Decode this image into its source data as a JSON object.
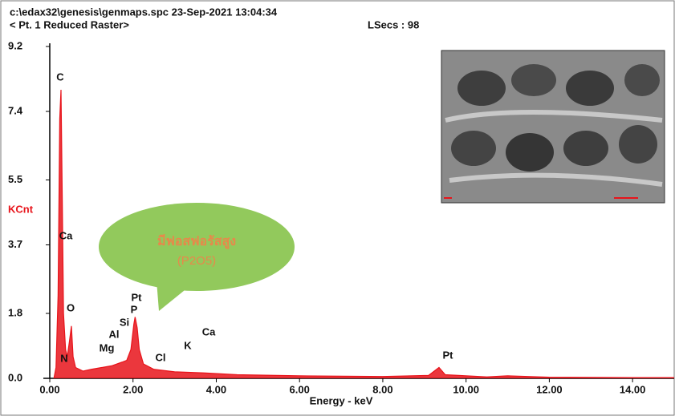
{
  "header": {
    "file": "c:\\edax32\\genesis\\genmaps.spc  23-Sep-2021 13:04:34",
    "raster": "< Pt.  1 Reduced Raster>",
    "lsecs": "LSecs :  98"
  },
  "chart_data": {
    "type": "area",
    "color": "#e8141b",
    "x_label": "Energy - keV",
    "y_label": "KCnt",
    "x": [
      0.1,
      0.15,
      0.2,
      0.24,
      0.27,
      0.3,
      0.33,
      0.38,
      0.42,
      0.47,
      0.52,
      0.56,
      0.62,
      0.8,
      1.0,
      1.25,
      1.5,
      1.74,
      1.85,
      1.95,
      2.02,
      2.05,
      2.1,
      2.15,
      2.25,
      2.5,
      3.0,
      3.7,
      4.5,
      6.0,
      8.0,
      9.1,
      9.35,
      9.5,
      10.5,
      11.0,
      12.0,
      14.0,
      15.0
    ],
    "values": [
      0,
      0.3,
      2.3,
      7.2,
      8.0,
      5.0,
      1.8,
      0.8,
      0.6,
      1.0,
      1.45,
      0.6,
      0.3,
      0.2,
      0.25,
      0.3,
      0.35,
      0.45,
      0.5,
      0.8,
      1.5,
      1.7,
      1.4,
      0.8,
      0.4,
      0.25,
      0.18,
      0.15,
      0.1,
      0.07,
      0.05,
      0.08,
      0.3,
      0.1,
      0.04,
      0.07,
      0.03,
      0.02,
      0.02
    ],
    "xlim": [
      0,
      15
    ],
    "ylim": [
      0,
      9.2
    ],
    "xticks": [
      {
        "value": 0,
        "label": "0.00"
      },
      {
        "value": 2,
        "label": "2.00"
      },
      {
        "value": 4,
        "label": "4.00"
      },
      {
        "value": 6,
        "label": "6.00"
      },
      {
        "value": 8,
        "label": "8.00"
      },
      {
        "value": 10,
        "label": "10.00"
      },
      {
        "value": 12,
        "label": "12.00"
      },
      {
        "value": 14,
        "label": "14.00"
      }
    ],
    "yticks": [
      {
        "value": 0,
        "label": "0.0"
      },
      1.8,
      3.7,
      5.5,
      7.4,
      9.2
    ],
    "peak_labels": [
      "C",
      "Ca",
      "O",
      "N",
      "Mg",
      "Al",
      "Si",
      "P",
      "Pt",
      "Cl",
      "K",
      "Ca",
      "Pt"
    ],
    "callout": [
      "มีฟอสฟอรัสสูง",
      "(P2O5)"
    ]
  }
}
